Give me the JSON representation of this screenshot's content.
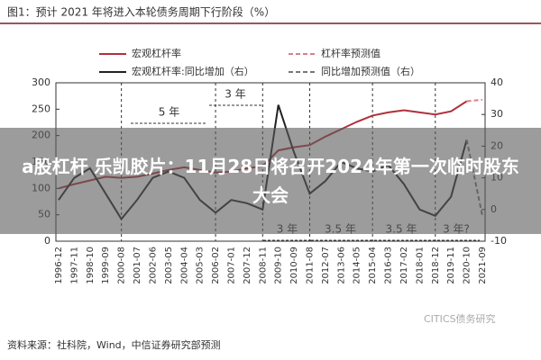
{
  "chart_data": {
    "type": "line",
    "title": "图1：预计 2021 年将进入本轮债务周期下行阶段（%）",
    "categories": [
      "1996-12",
      "1997-11",
      "1998-10",
      "1999-09",
      "2000-08",
      "2001-07",
      "2002-06",
      "2003-05",
      "2004-04",
      "2005-03",
      "2006-02",
      "2007-01",
      "2007-12",
      "2008-11",
      "2009-10",
      "2010-09",
      "2011-08",
      "2012-07",
      "2013-06",
      "2014-05",
      "2015-04",
      "2016-03",
      "2017-02",
      "2018-01",
      "2018-12",
      "2019-11",
      "2020-10",
      "2021-09"
    ],
    "series": [
      {
        "name": "宏观杠杆率",
        "color": "#b0303a",
        "dash": false,
        "axis": "y",
        "values": [
          100,
          108,
          115,
          122,
          120,
          122,
          128,
          135,
          140,
          135,
          130,
          132,
          138,
          142,
          172,
          178,
          182,
          198,
          212,
          226,
          238,
          244,
          248,
          244,
          240,
          246,
          265,
          null
        ]
      },
      {
        "name": "杠杆率预测值",
        "color": "#d9808a",
        "dash": true,
        "axis": "y",
        "values": [
          null,
          null,
          null,
          null,
          null,
          null,
          null,
          null,
          null,
          null,
          null,
          null,
          null,
          null,
          null,
          null,
          null,
          null,
          null,
          null,
          null,
          null,
          null,
          null,
          null,
          null,
          265,
          268
        ]
      },
      {
        "name": "宏观杠杆率:同比增加（右）",
        "color": "#222222",
        "dash": false,
        "axis": "y2",
        "values": [
          3,
          10,
          13,
          5,
          -3,
          3,
          10,
          12,
          10,
          3,
          -1,
          3,
          2,
          0,
          33,
          18,
          5,
          9,
          15,
          13,
          12,
          14,
          8,
          0,
          -2,
          4,
          22,
          null
        ]
      },
      {
        "name": "同比增加预测值（右）",
        "color": "#777777",
        "dash": true,
        "axis": "y2",
        "values": [
          null,
          null,
          null,
          null,
          null,
          null,
          null,
          null,
          null,
          null,
          null,
          null,
          null,
          null,
          null,
          null,
          null,
          null,
          null,
          null,
          null,
          null,
          null,
          null,
          null,
          null,
          22,
          -2
        ]
      }
    ],
    "ylim": [
      0,
      300
    ],
    "yticks": [
      0,
      50,
      100,
      150,
      200,
      250,
      300
    ],
    "y2lim": [
      -10,
      40
    ],
    "y2ticks": [
      -10,
      0,
      10,
      20,
      30,
      40
    ],
    "cycle_markers": [
      "2000-08",
      "2006-02",
      "2008-11",
      "2011-08",
      "2015-04",
      "2018-12"
    ],
    "annotations": [
      "5 年",
      "3 年",
      "3 年",
      "3.5 年",
      "3.5 年",
      "3 年?"
    ],
    "source": "资料来源：社科院，Wind，中信证券研究部预测",
    "watermark": "CITICS债务研究",
    "banner": "a股杠杆 乐凯胶片：11月28日将召开2024年第一次临时股东大会"
  }
}
